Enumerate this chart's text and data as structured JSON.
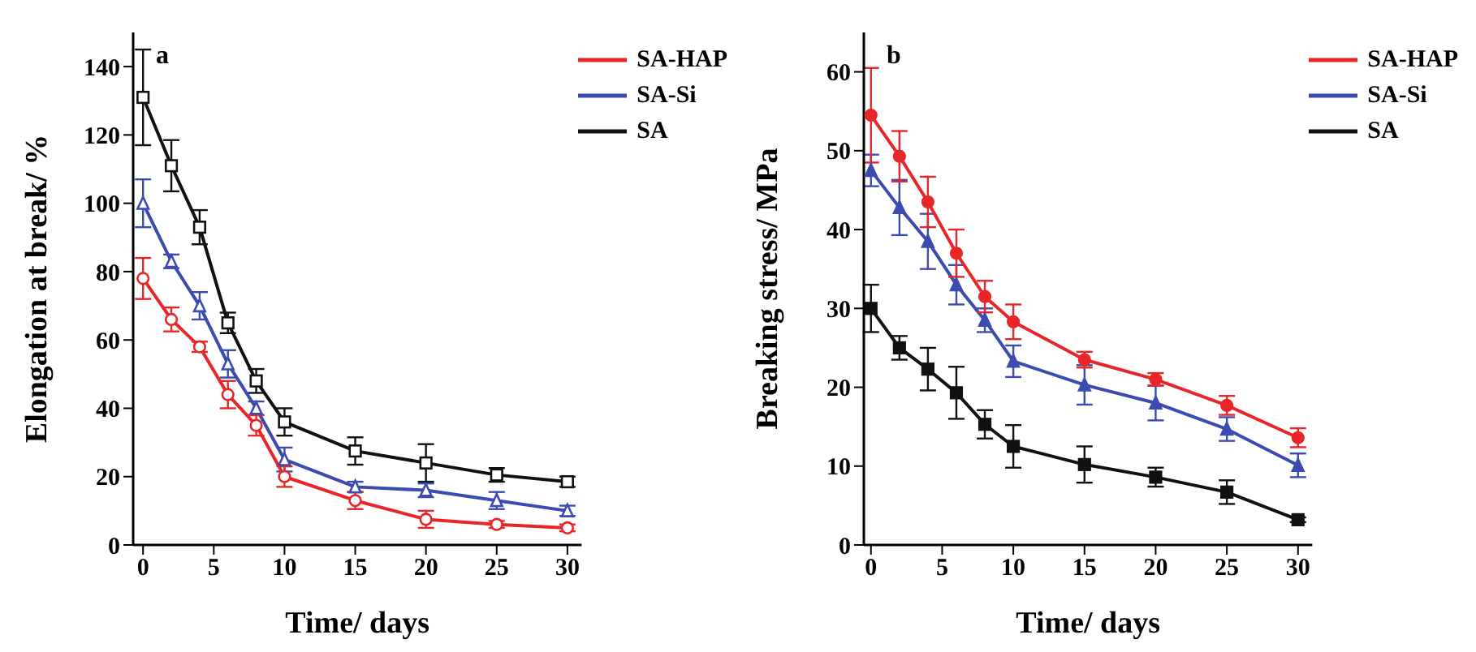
{
  "chart_data": [
    {
      "type": "line",
      "annotations": [
        {
          "text": "a"
        }
      ],
      "xlabel": "Time/ days",
      "ylabel": "Elongation at break/ %",
      "x": [
        0,
        2,
        4,
        6,
        8,
        10,
        15,
        20,
        25,
        30
      ],
      "xlim": [
        -0.7,
        31
      ],
      "xticks": [
        0,
        5,
        10,
        15,
        20,
        25,
        30
      ],
      "ylim": [
        0,
        150
      ],
      "yticks": [
        0,
        20,
        40,
        60,
        80,
        100,
        120,
        140
      ],
      "legend": "top right",
      "grid": false,
      "line_style": "solid",
      "series": [
        {
          "name": "SA-HAP",
          "color": "#e8262a",
          "marker": "circle",
          "values": [
            78,
            66,
            58,
            44,
            35,
            20,
            13,
            7.5,
            6,
            5
          ],
          "errors": [
            6,
            3.5,
            1.5,
            4,
            3,
            3,
            2.5,
            2.5,
            1,
            1
          ]
        },
        {
          "name": "SA-Si",
          "color": "#3d4bb0",
          "marker": "triangle",
          "values": [
            100,
            83,
            70,
            53,
            40,
            25,
            17,
            16,
            13,
            10
          ],
          "errors": [
            7,
            2,
            4,
            4,
            2,
            3.5,
            1.5,
            2,
            2.5,
            1.5
          ]
        },
        {
          "name": "SA",
          "color": "#111111",
          "marker": "square",
          "values": [
            131,
            111,
            93,
            65,
            48,
            36,
            27.5,
            24,
            20.5,
            18.5
          ],
          "errors": [
            14,
            7.5,
            5,
            3,
            3.5,
            4,
            4,
            5.5,
            2,
            1.5
          ]
        }
      ]
    },
    {
      "type": "line",
      "annotations": [
        {
          "text": "b"
        }
      ],
      "xlabel": "Time/ days",
      "ylabel": "Breaking stress/ MPa",
      "x": [
        0,
        2,
        4,
        6,
        8,
        10,
        15,
        20,
        25,
        30
      ],
      "xlim": [
        -0.5,
        31
      ],
      "xticks": [
        0,
        5,
        10,
        15,
        20,
        25,
        30
      ],
      "ylim": [
        0,
        65
      ],
      "yticks": [
        0,
        10,
        20,
        30,
        40,
        50,
        60
      ],
      "legend": "top right",
      "grid": false,
      "line_style": "solid",
      "series": [
        {
          "name": "SA-HAP",
          "color": "#e8262a",
          "marker": "circle",
          "values": [
            54.5,
            49.3,
            43.5,
            37,
            31.5,
            28.3,
            23.5,
            21,
            17.7,
            13.6
          ],
          "errors": [
            6,
            3.2,
            3.2,
            3,
            2,
            2.2,
            1,
            0.8,
            1.2,
            1.2
          ]
        },
        {
          "name": "SA-Si",
          "color": "#3d4bb0",
          "marker": "triangle",
          "values": [
            47.5,
            42.8,
            38.5,
            33,
            28.5,
            23.3,
            20.3,
            18,
            14.7,
            10.1
          ],
          "errors": [
            2,
            3.5,
            3.5,
            2.5,
            1.5,
            2,
            2.5,
            2.2,
            1.5,
            1.5
          ]
        },
        {
          "name": "SA",
          "color": "#111111",
          "marker": "square",
          "values": [
            30,
            25,
            22.3,
            19.3,
            15.3,
            12.5,
            10.2,
            8.6,
            6.7,
            3.2
          ],
          "errors": [
            3,
            1.5,
            2.7,
            3.3,
            1.8,
            2.7,
            2.3,
            1.2,
            1.5,
            0.3
          ]
        }
      ]
    }
  ]
}
